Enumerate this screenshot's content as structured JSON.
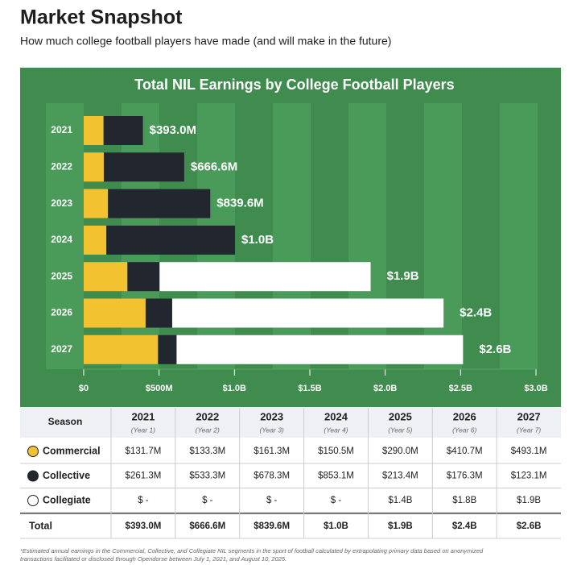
{
  "header": {
    "title": "Market Snapshot",
    "subtitle": "How much college football players have made (and will make in the future)"
  },
  "chart_data": {
    "type": "bar",
    "orientation": "horizontal",
    "stacked": true,
    "title": "Total NIL Earnings by College Football Players",
    "categories": [
      "2021",
      "2022",
      "2023",
      "2024",
      "2025",
      "2026",
      "2027"
    ],
    "category_notes": [
      "(Year 1)",
      "(Year 2)",
      "(Year 3)",
      "(Year 4)",
      "(Year 5)",
      "(Year 6)",
      "(Year 7)"
    ],
    "series": [
      {
        "name": "Commercial",
        "color": "#f2c230",
        "values": [
          131.7,
          133.3,
          161.3,
          150.5,
          290.0,
          410.7,
          493.1
        ],
        "value_labels": [
          "$131.7M",
          "$133.3M",
          "$161.3M",
          "$150.5M",
          "$290.0M",
          "$410.7M",
          "$493.1M"
        ]
      },
      {
        "name": "Collective",
        "color": "#22262e",
        "values": [
          261.3,
          533.3,
          678.3,
          853.1,
          213.4,
          176.3,
          123.1
        ],
        "value_labels": [
          "$261.3M",
          "$533.3M",
          "$678.3M",
          "$853.1M",
          "$213.4M",
          "$176.3M",
          "$123.1M"
        ]
      },
      {
        "name": "Collegiate",
        "color": "#ffffff",
        "values": [
          0,
          0,
          0,
          0,
          1400,
          1800,
          1900
        ],
        "value_labels": [
          "$ -",
          "$ -",
          "$ -",
          "$ -",
          "$1.4B",
          "$1.8B",
          "$1.9B"
        ]
      }
    ],
    "totals": {
      "name": "Total",
      "values": [
        393.0,
        666.6,
        839.6,
        1003.6,
        1903.4,
        2387.0,
        2600
      ],
      "value_labels": [
        "$393.0M",
        "$666.6M",
        "$839.6M",
        "$1.0B",
        "$1.9B",
        "$2.4B",
        "$2.6B"
      ]
    },
    "xlim": [
      0,
      3000
    ],
    "xticks": [
      {
        "value": 0,
        "label": "$0"
      },
      {
        "value": 500,
        "label": "$500M"
      },
      {
        "value": 1000,
        "label": "$1.0B"
      },
      {
        "value": 1500,
        "label": "$1.5B"
      },
      {
        "value": 2000,
        "label": "$2.0B"
      },
      {
        "value": 2500,
        "label": "$2.5B"
      },
      {
        "value": 3000,
        "label": "$3.0B"
      }
    ]
  },
  "table": {
    "header": "Season"
  },
  "footnote": [
    "*Estimated annual earnings in the Commercial, Collective, and Collegiate NIL segments in the sport of football calculated by extrapolating primary data based on anonymized",
    "transactions facilitated or disclosed through Opendorse between July 1, 2021, and August 10, 2025."
  ]
}
